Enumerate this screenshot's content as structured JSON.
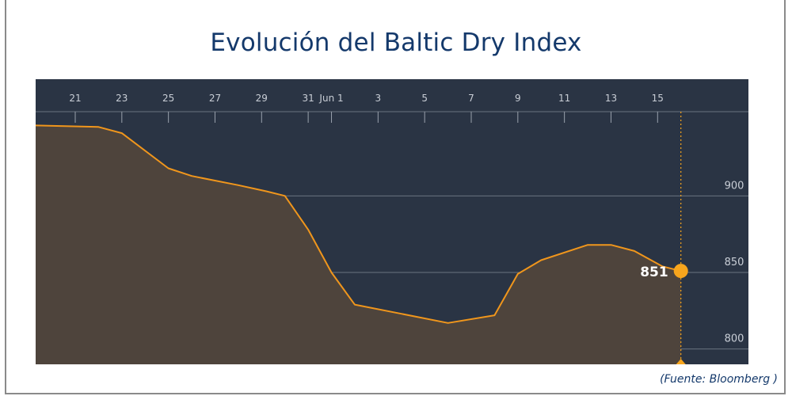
{
  "header": {
    "title": "Evolución del Baltic Dry Index"
  },
  "footer": {
    "source": "(Fuente: Bloomberg )"
  },
  "chart_data": {
    "type": "area",
    "title": "Evolución del Baltic Dry Index",
    "xlabel": "",
    "ylabel": "",
    "x_ticks": [
      {
        "day": 21,
        "label": "21"
      },
      {
        "day": 23,
        "label": "23"
      },
      {
        "day": 25,
        "label": "25"
      },
      {
        "day": 27,
        "label": "27"
      },
      {
        "day": 29,
        "label": "29"
      },
      {
        "day": 31,
        "label": "31"
      },
      {
        "day": 32,
        "label": "Jun 1"
      },
      {
        "day": 34,
        "label": "3"
      },
      {
        "day": 36,
        "label": "5"
      },
      {
        "day": 38,
        "label": "7"
      },
      {
        "day": 40,
        "label": "9"
      },
      {
        "day": 42,
        "label": "11"
      },
      {
        "day": 44,
        "label": "13"
      },
      {
        "day": 46,
        "label": "15"
      }
    ],
    "y_ticks": [
      800,
      850,
      900
    ],
    "ylim": [
      790,
      955
    ],
    "xlim": [
      19.3,
      49.9
    ],
    "grid": true,
    "series": [
      {
        "points": [
          {
            "day": 19.3,
            "value": 946
          },
          {
            "day": 22,
            "value": 945
          },
          {
            "day": 23,
            "value": 941
          },
          {
            "day": 25,
            "value": 918
          },
          {
            "day": 26,
            "value": 913
          },
          {
            "day": 28,
            "value": 907
          },
          {
            "day": 29.2,
            "value": 903
          },
          {
            "day": 30,
            "value": 900
          },
          {
            "day": 31,
            "value": 878
          },
          {
            "day": 32,
            "value": 850
          },
          {
            "day": 33,
            "value": 829
          },
          {
            "day": 35,
            "value": 823
          },
          {
            "day": 37,
            "value": 817
          },
          {
            "day": 39,
            "value": 822
          },
          {
            "day": 40,
            "value": 849
          },
          {
            "day": 41,
            "value": 858
          },
          {
            "day": 43,
            "value": 868
          },
          {
            "day": 44,
            "value": 868
          },
          {
            "day": 45,
            "value": 864
          },
          {
            "day": 46.2,
            "value": 854
          },
          {
            "day": 47,
            "value": 851
          }
        ]
      }
    ],
    "highlight": {
      "day": 47,
      "value": 851,
      "label": "851"
    },
    "colors": {
      "background": "#2a3444",
      "area_fill": "#4e443c",
      "line": "#f0961c",
      "marker": "#f7a51d",
      "grid": "#6b7380",
      "tick_text": "#c9ced6"
    }
  }
}
